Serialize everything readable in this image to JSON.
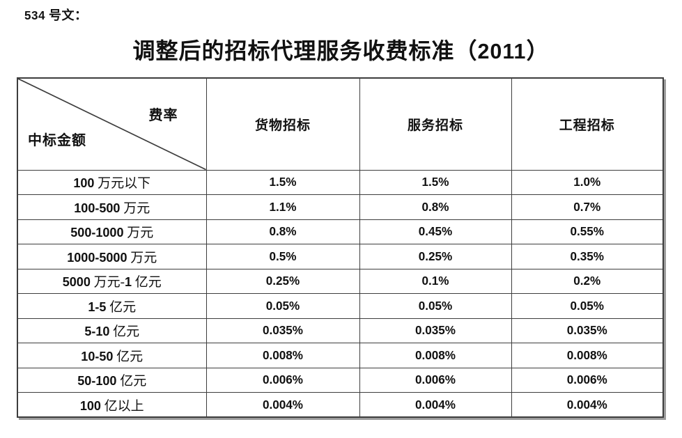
{
  "doc_label": "534 号文：",
  "title": "调整后的招标代理服务收费标准（2011）",
  "table": {
    "corner": {
      "top_right": "费率",
      "bottom_left": "中标金额"
    },
    "columns": [
      "货物招标",
      "服务招标",
      "工程招标"
    ],
    "rows": [
      {
        "label": "100 万元以下",
        "values": [
          "1.5%",
          "1.5%",
          "1.0%"
        ]
      },
      {
        "label": "100-500 万元",
        "values": [
          "1.1%",
          "0.8%",
          "0.7%"
        ]
      },
      {
        "label": "500-1000 万元",
        "values": [
          "0.8%",
          "0.45%",
          "0.55%"
        ]
      },
      {
        "label": "1000-5000 万元",
        "values": [
          "0.5%",
          "0.25%",
          "0.35%"
        ]
      },
      {
        "label": "5000 万元-1 亿元",
        "values": [
          "0.25%",
          "0.1%",
          "0.2%"
        ]
      },
      {
        "label": "1-5 亿元",
        "values": [
          "0.05%",
          "0.05%",
          "0.05%"
        ]
      },
      {
        "label": "5-10 亿元",
        "values": [
          "0.035%",
          "0.035%",
          "0.035%"
        ]
      },
      {
        "label": "10-50 亿元",
        "values": [
          "0.008%",
          "0.008%",
          "0.008%"
        ]
      },
      {
        "label": "50-100 亿元",
        "values": [
          "0.006%",
          "0.006%",
          "0.006%"
        ]
      },
      {
        "label": "100 亿以上",
        "values": [
          "0.004%",
          "0.004%",
          "0.004%"
        ]
      }
    ],
    "border_color": "#3d3d3d",
    "shadow_color": "#9c9c9c"
  }
}
